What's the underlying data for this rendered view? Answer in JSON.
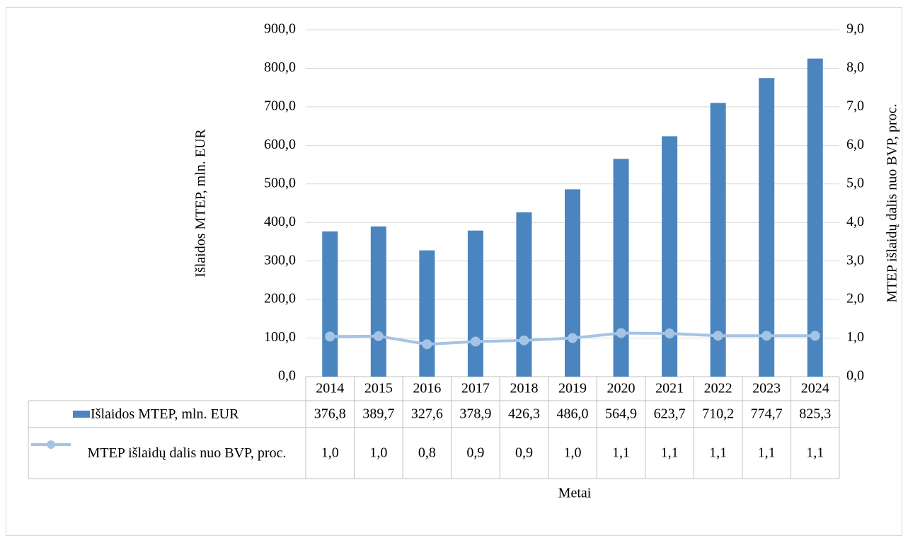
{
  "chart_data": {
    "type": "bar",
    "xlabel": "Metai",
    "ylabel": "Išlaidos MTEP, mln. EUR",
    "y2label": "MTEP išlaidų dalis nuo BVP, proc.",
    "categories": [
      "2014",
      "2015",
      "2016",
      "2017",
      "2018",
      "2019",
      "2020",
      "2021",
      "2022",
      "2023",
      "2024"
    ],
    "series": [
      {
        "name": "Išlaidos MTEP, mln. EUR",
        "type": "bar",
        "color": "#4a85bf",
        "values": [
          376.8,
          389.7,
          327.6,
          378.9,
          426.3,
          486.0,
          564.9,
          623.7,
          710.2,
          774.7,
          825.3
        ],
        "value_labels": [
          "376,8",
          "389,7",
          "327,6",
          "378,9",
          "426,3",
          "486,0",
          "564,9",
          "623,7",
          "710,2",
          "774,7",
          "825,3"
        ]
      },
      {
        "name": "MTEP išlaidų dalis nuo BVP, proc.",
        "type": "line",
        "axis": "y2",
        "color": "#a5c3e5",
        "values": [
          1.04,
          1.05,
          0.84,
          0.91,
          0.94,
          1.0,
          1.13,
          1.12,
          1.06,
          1.06,
          1.06
        ],
        "value_labels": [
          "1,0",
          "1,0",
          "0,8",
          "0,9",
          "0,9",
          "1,0",
          "1,1",
          "1,1",
          "1,1",
          "1,1",
          "1,1"
        ]
      }
    ],
    "ylim": [
      0,
      900
    ],
    "yticks": [
      {
        "value": 0,
        "label": "0,0"
      },
      {
        "value": 100,
        "label": "100,0"
      },
      {
        "value": 200,
        "label": "200,0"
      },
      {
        "value": 300,
        "label": "300,0"
      },
      {
        "value": 400,
        "label": "400,0"
      },
      {
        "value": 500,
        "label": "500,0"
      },
      {
        "value": 600,
        "label": "600,0"
      },
      {
        "value": 700,
        "label": "700,0"
      },
      {
        "value": 800,
        "label": "800,0"
      },
      {
        "value": 900,
        "label": "900,0"
      }
    ],
    "y2lim": [
      0,
      9
    ],
    "y2ticks": [
      {
        "value": 0,
        "label": "0,0"
      },
      {
        "value": 1,
        "label": "1,0"
      },
      {
        "value": 2,
        "label": "2,0"
      },
      {
        "value": 3,
        "label": "3,0"
      },
      {
        "value": 4,
        "label": "4,0"
      },
      {
        "value": 5,
        "label": "5,0"
      },
      {
        "value": 6,
        "label": "6,0"
      },
      {
        "value": 7,
        "label": "7,0"
      },
      {
        "value": 8,
        "label": "8,0"
      },
      {
        "value": 9,
        "label": "9,0"
      }
    ],
    "grid": true
  }
}
